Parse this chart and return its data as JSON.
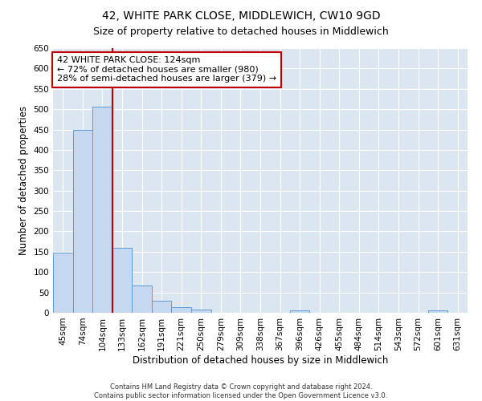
{
  "title": "42, WHITE PARK CLOSE, MIDDLEWICH, CW10 9GD",
  "subtitle": "Size of property relative to detached houses in Middlewich",
  "xlabel": "Distribution of detached houses by size in Middlewich",
  "ylabel": "Number of detached properties",
  "categories": [
    "45sqm",
    "74sqm",
    "104sqm",
    "133sqm",
    "162sqm",
    "191sqm",
    "221sqm",
    "250sqm",
    "279sqm",
    "309sqm",
    "338sqm",
    "367sqm",
    "396sqm",
    "426sqm",
    "455sqm",
    "484sqm",
    "514sqm",
    "543sqm",
    "572sqm",
    "601sqm",
    "631sqm"
  ],
  "values": [
    148,
    450,
    507,
    160,
    67,
    30,
    13,
    8,
    0,
    0,
    0,
    0,
    5,
    0,
    0,
    0,
    0,
    0,
    0,
    5,
    0
  ],
  "bar_color": "#c5d8f0",
  "bar_edge_color": "#5b9bd5",
  "background_color": "#dce6f1",
  "grid_color": "#ffffff",
  "vline_x": 2.5,
  "vline_color": "#c00000",
  "annotation_text": "42 WHITE PARK CLOSE: 124sqm\n← 72% of detached houses are smaller (980)\n28% of semi-detached houses are larger (379) →",
  "annotation_box_color": "#c00000",
  "ylim": [
    0,
    650
  ],
  "yticks": [
    0,
    50,
    100,
    150,
    200,
    250,
    300,
    350,
    400,
    450,
    500,
    550,
    600,
    650
  ],
  "footer": "Contains HM Land Registry data © Crown copyright and database right 2024.\nContains public sector information licensed under the Open Government Licence v3.0.",
  "title_fontsize": 10,
  "subtitle_fontsize": 9,
  "axis_label_fontsize": 8.5,
  "tick_fontsize": 7.5,
  "annotation_fontsize": 8,
  "footer_fontsize": 6
}
